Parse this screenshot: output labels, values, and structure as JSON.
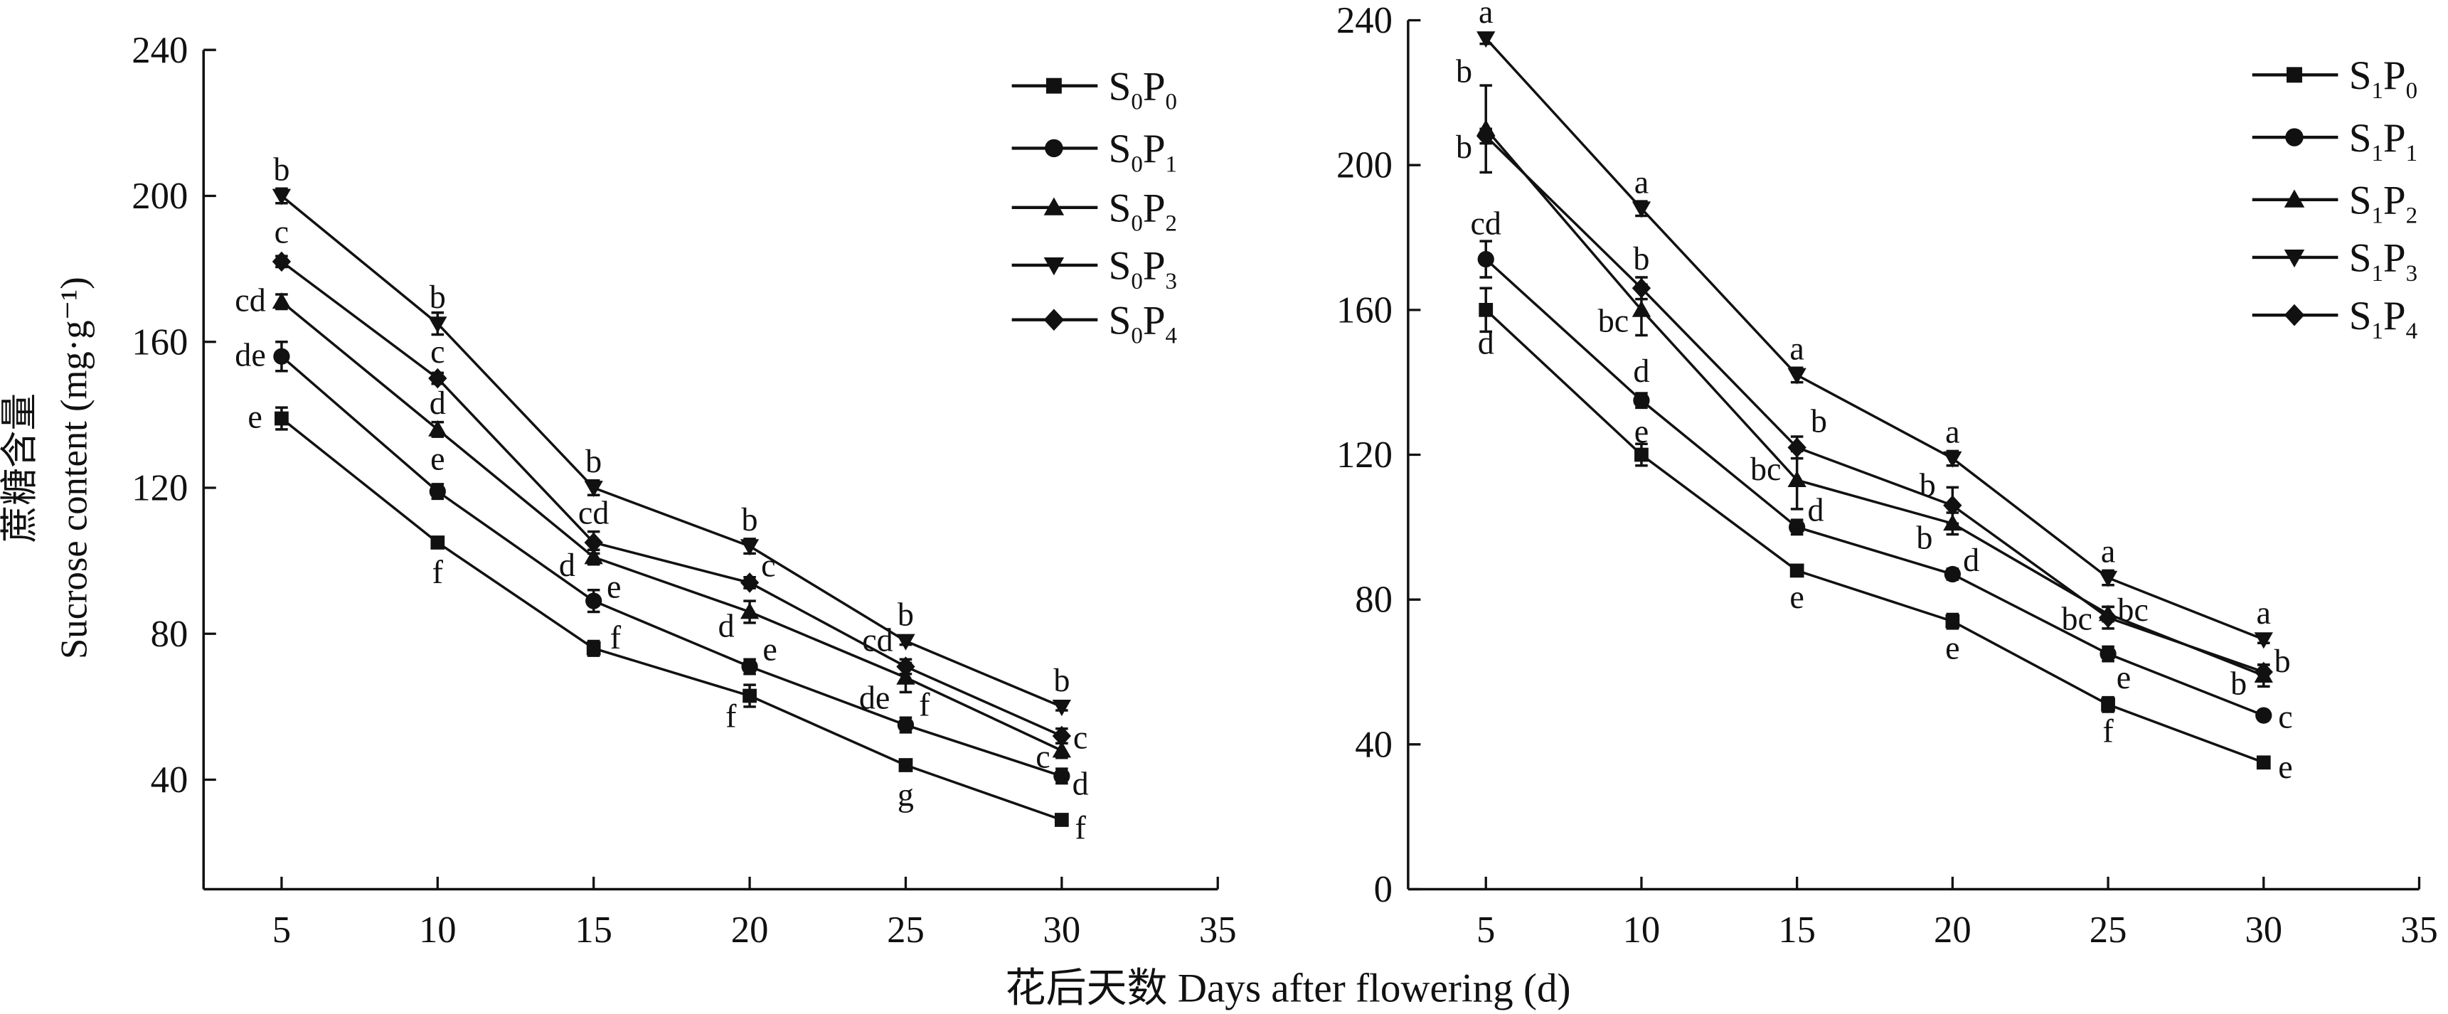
{
  "xlabel": "花后天数 Days after flowering (d)",
  "ylabel_cn": "蔗糖含量",
  "ylabel_en": "Sucrose content (mg·g⁻¹)",
  "chart_data": [
    {
      "type": "line",
      "x": [
        5,
        10,
        15,
        20,
        25,
        30
      ],
      "xlim": [
        2.5,
        35
      ],
      "xticks": [
        5,
        10,
        15,
        20,
        25,
        30,
        35
      ],
      "ylim": [
        10,
        240
      ],
      "yticks": [
        40,
        80,
        120,
        160,
        200,
        240
      ],
      "grid": false,
      "legend": "top-right",
      "series": [
        {
          "name": "S0P0",
          "sub1": "0",
          "sub2": "0",
          "marker": "square",
          "values": [
            139,
            105,
            76,
            63,
            44,
            29
          ],
          "errors": [
            3,
            1.5,
            2,
            3,
            1.5,
            1
          ],
          "letters": [
            "e",
            "f",
            "f",
            "f",
            "g",
            "f"
          ]
        },
        {
          "name": "S0P1",
          "sub1": "0",
          "sub2": "1",
          "marker": "circle",
          "values": [
            156,
            119,
            89,
            71,
            55,
            41
          ],
          "errors": [
            4,
            2,
            3,
            2,
            2,
            2
          ],
          "letters": [
            "de",
            "e",
            "e",
            "e",
            "f",
            "d"
          ]
        },
        {
          "name": "S0P2",
          "sub1": "0",
          "sub2": "2",
          "marker": "triangle-up",
          "values": [
            171,
            136,
            101,
            86,
            68,
            48
          ],
          "errors": [
            2,
            2,
            2,
            3,
            4,
            2
          ],
          "letters": [
            "cd",
            "d",
            "d",
            "d",
            "de",
            "c"
          ]
        },
        {
          "name": "S0P3",
          "sub1": "0",
          "sub2": "3",
          "marker": "triangle-down",
          "values": [
            200,
            165,
            120,
            104,
            78,
            60
          ],
          "errors": [
            2,
            3,
            2,
            2,
            1,
            1
          ],
          "letters": [
            "b",
            "b",
            "b",
            "b",
            "b",
            "b"
          ]
        },
        {
          "name": "S0P4",
          "sub1": "0",
          "sub2": "4",
          "marker": "diamond",
          "values": [
            182,
            150,
            105,
            94,
            71,
            52
          ],
          "errors": [
            1.5,
            1.5,
            3,
            1.5,
            2,
            2
          ],
          "letters": [
            "c",
            "c",
            "cd",
            "c",
            "cd",
            "c"
          ]
        }
      ]
    },
    {
      "type": "line",
      "x": [
        5,
        10,
        15,
        20,
        25,
        30
      ],
      "xlim": [
        2.5,
        35
      ],
      "xticks": [
        5,
        10,
        15,
        20,
        25,
        30,
        35
      ],
      "ylim": [
        0,
        240
      ],
      "yticks": [
        0,
        40,
        80,
        120,
        160,
        200,
        240
      ],
      "grid": false,
      "legend": "top-right",
      "series": [
        {
          "name": "S1P0",
          "sub1": "1",
          "sub2": "0",
          "marker": "square",
          "values": [
            160,
            120,
            88,
            74,
            51,
            35
          ],
          "errors": [
            6,
            3,
            1.5,
            2,
            2,
            1
          ],
          "letters": [
            "d",
            "e",
            "e",
            "e",
            "f",
            "e"
          ]
        },
        {
          "name": "S1P1",
          "sub1": "1",
          "sub2": "1",
          "marker": "circle",
          "values": [
            174,
            135,
            100,
            87,
            65,
            48
          ],
          "errors": [
            5,
            2,
            2,
            1.5,
            2,
            1
          ],
          "letters": [
            "cd",
            "d",
            "d",
            "d",
            "e",
            "c"
          ]
        },
        {
          "name": "S1P2",
          "sub1": "1",
          "sub2": "2",
          "marker": "triangle-up",
          "values": [
            210,
            160,
            113,
            101,
            76,
            59
          ],
          "errors": [
            12,
            7,
            8,
            3,
            2,
            3
          ],
          "letters": [
            "b",
            "bc",
            "bc",
            "b",
            "bc",
            "b"
          ]
        },
        {
          "name": "S1P3",
          "sub1": "1",
          "sub2": "3",
          "marker": "triangle-down",
          "values": [
            235,
            188,
            142,
            119,
            86,
            69
          ],
          "errors": [
            1.5,
            2,
            2,
            2,
            2,
            1
          ],
          "letters": [
            "a",
            "a",
            "a",
            "a",
            "a",
            "a"
          ]
        },
        {
          "name": "S1P4",
          "sub1": "1",
          "sub2": "4",
          "marker": "diamond",
          "values": [
            208,
            166,
            122,
            106,
            75,
            60
          ],
          "errors": [
            2,
            3,
            3,
            5,
            3,
            2
          ],
          "letters": [
            "b",
            "b",
            "b",
            "b",
            "bc",
            "b"
          ]
        }
      ]
    }
  ]
}
